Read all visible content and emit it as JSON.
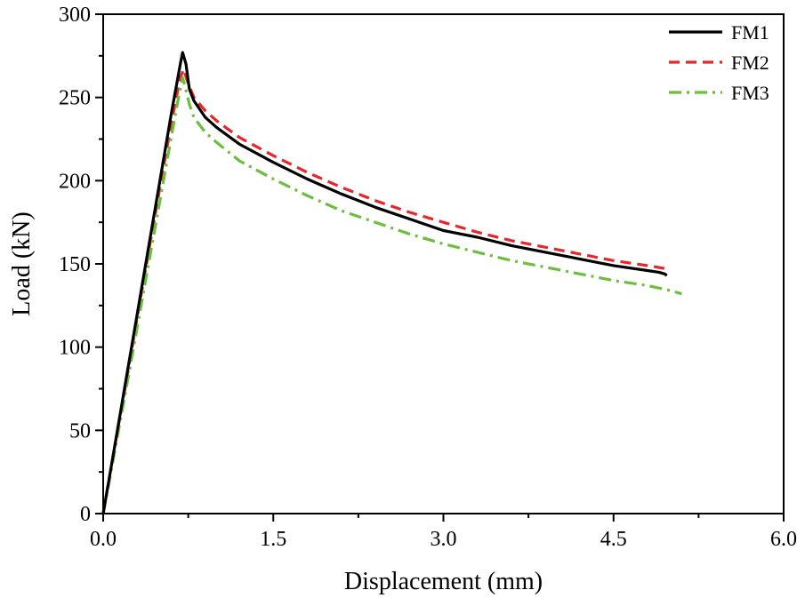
{
  "chart_data": {
    "type": "line",
    "title": "",
    "xlabel": "Displacement (mm)",
    "ylabel": "Load (kN)",
    "xlim": [
      0,
      6
    ],
    "ylim": [
      0,
      300
    ],
    "xticks": [
      0,
      1.5,
      3,
      4.5,
      6
    ],
    "xtick_labels": [
      "0.0",
      "1.5",
      "3.0",
      "4.5",
      "6.0"
    ],
    "yticks": [
      0,
      50,
      100,
      150,
      200,
      250,
      300
    ],
    "ytick_labels": [
      "0",
      "50",
      "100",
      "150",
      "200",
      "250",
      "300"
    ],
    "grid": false,
    "legend_position": "top-right",
    "series": [
      {
        "name": "FM1",
        "color": "#000000",
        "dash": "solid",
        "points": [
          [
            0,
            0
          ],
          [
            0.05,
            20
          ],
          [
            0.1,
            40
          ],
          [
            0.2,
            80
          ],
          [
            0.3,
            120
          ],
          [
            0.4,
            160
          ],
          [
            0.5,
            200
          ],
          [
            0.6,
            240
          ],
          [
            0.68,
            270
          ],
          [
            0.7,
            277
          ],
          [
            0.73,
            270
          ],
          [
            0.76,
            255
          ],
          [
            0.8,
            248
          ],
          [
            0.9,
            238
          ],
          [
            1.0,
            232
          ],
          [
            1.2,
            222
          ],
          [
            1.5,
            211
          ],
          [
            1.8,
            201
          ],
          [
            2.1,
            192
          ],
          [
            2.4,
            184
          ],
          [
            2.7,
            177
          ],
          [
            3.0,
            170
          ],
          [
            3.3,
            166
          ],
          [
            3.6,
            161
          ],
          [
            3.9,
            157
          ],
          [
            4.2,
            153
          ],
          [
            4.5,
            149
          ],
          [
            4.8,
            146
          ],
          [
            4.9,
            145
          ],
          [
            4.95,
            144
          ],
          [
            4.97,
            143
          ]
        ]
      },
      {
        "name": "FM2",
        "color": "#e8262a",
        "dash": "dashed",
        "points": [
          [
            0,
            0
          ],
          [
            0.05,
            20
          ],
          [
            0.1,
            40
          ],
          [
            0.2,
            78
          ],
          [
            0.3,
            118
          ],
          [
            0.4,
            157
          ],
          [
            0.5,
            196
          ],
          [
            0.6,
            234
          ],
          [
            0.68,
            262
          ],
          [
            0.71,
            267
          ],
          [
            0.74,
            260
          ],
          [
            0.8,
            250
          ],
          [
            0.9,
            242
          ],
          [
            1.0,
            236
          ],
          [
            1.2,
            226
          ],
          [
            1.5,
            215
          ],
          [
            1.8,
            205
          ],
          [
            2.1,
            196
          ],
          [
            2.4,
            188
          ],
          [
            2.7,
            181
          ],
          [
            3.0,
            175
          ],
          [
            3.3,
            169
          ],
          [
            3.6,
            164
          ],
          [
            3.9,
            160
          ],
          [
            4.2,
            156
          ],
          [
            4.5,
            152
          ],
          [
            4.8,
            149
          ],
          [
            4.97,
            147
          ]
        ]
      },
      {
        "name": "FM3",
        "color": "#6cbf3c",
        "dash": "dashdot",
        "points": [
          [
            0,
            0
          ],
          [
            0.05,
            18
          ],
          [
            0.1,
            37
          ],
          [
            0.2,
            74
          ],
          [
            0.3,
            112
          ],
          [
            0.4,
            150
          ],
          [
            0.5,
            188
          ],
          [
            0.6,
            226
          ],
          [
            0.67,
            252
          ],
          [
            0.7,
            262
          ],
          [
            0.72,
            257
          ],
          [
            0.76,
            246
          ],
          [
            0.8,
            238
          ],
          [
            0.9,
            229
          ],
          [
            1.0,
            223
          ],
          [
            1.2,
            212
          ],
          [
            1.5,
            201
          ],
          [
            1.8,
            191
          ],
          [
            2.1,
            182
          ],
          [
            2.4,
            175
          ],
          [
            2.7,
            168
          ],
          [
            3.0,
            162
          ],
          [
            3.3,
            157
          ],
          [
            3.6,
            152
          ],
          [
            3.9,
            148
          ],
          [
            4.2,
            144
          ],
          [
            4.5,
            140
          ],
          [
            4.8,
            137
          ],
          [
            5.0,
            134
          ],
          [
            5.1,
            132
          ]
        ]
      }
    ]
  }
}
